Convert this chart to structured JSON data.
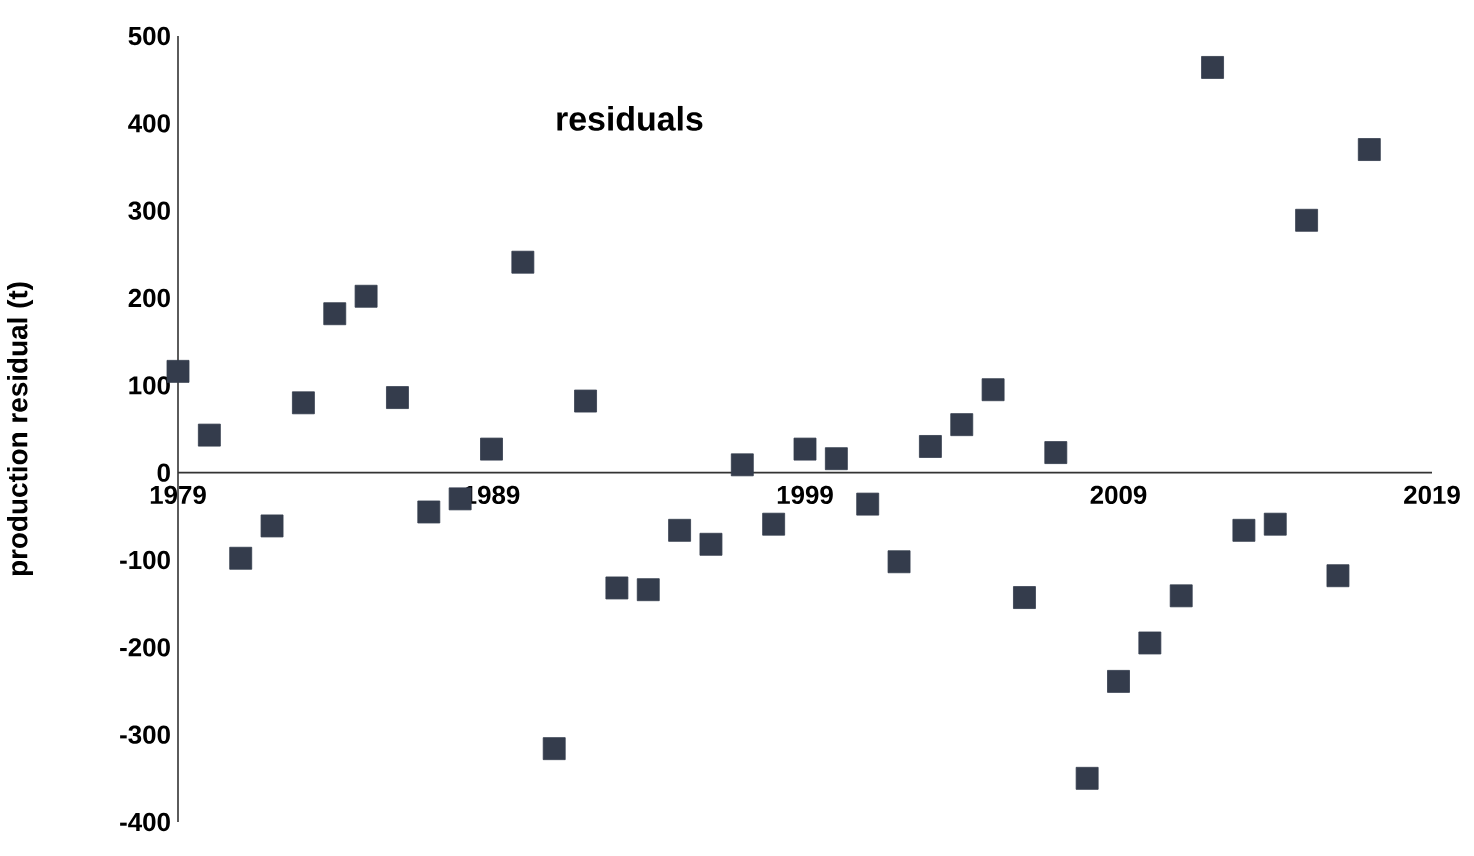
{
  "chart_data": {
    "type": "scatter",
    "title": "residuals",
    "ylabel": "production residual (t)",
    "marker": "square",
    "x": [
      1979,
      1980,
      1981,
      1982,
      1983,
      1984,
      1985,
      1986,
      1987,
      1988,
      1989,
      1990,
      1991,
      1992,
      1993,
      1994,
      1995,
      1996,
      1997,
      1998,
      1999,
      2000,
      2001,
      2002,
      2003,
      2004,
      2005,
      2006,
      2007,
      2008,
      2009,
      2010,
      2011,
      2012,
      2013,
      2014,
      2015,
      2016,
      2017
    ],
    "series": [
      {
        "color": "#343c4c",
        "values": [
          116,
          43,
          -98,
          -61,
          80,
          182,
          202,
          86,
          -45,
          -30,
          27,
          241,
          -316,
          82,
          -132,
          -134,
          -66,
          -82,
          9,
          -59,
          27,
          16,
          -36,
          -102,
          30,
          55,
          95,
          -143,
          23,
          -350,
          -239,
          -195,
          -141,
          464,
          -66,
          -59,
          289,
          -118,
          370
        ]
      }
    ],
    "xlim": [
      1979,
      2019
    ],
    "xticks": [
      1979,
      1989,
      1999,
      2009,
      2019
    ],
    "ylim": [
      -400,
      500
    ],
    "yticks": [
      -400,
      -300,
      -200,
      -100,
      0,
      100,
      200,
      300,
      400,
      500
    ]
  }
}
